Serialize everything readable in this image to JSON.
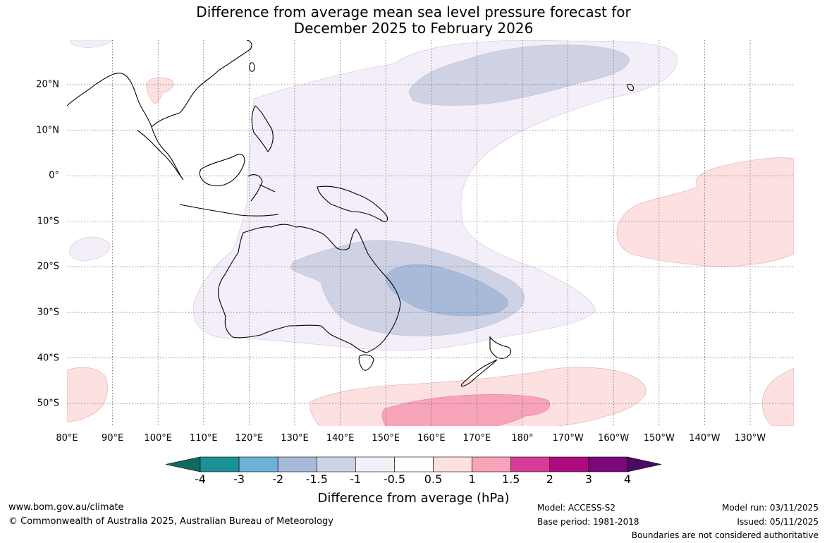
{
  "title_line1": "Difference from average mean sea level pressure forecast for",
  "title_line2": "December 2025 to February 2026",
  "lon_labels": [
    "80°E",
    "90°E",
    "100°E",
    "110°E",
    "120°E",
    "130°E",
    "140°E",
    "150°E",
    "160°E",
    "170°E",
    "180°",
    "170°W",
    "160°W",
    "150°W",
    "140°W",
    "130°W"
  ],
  "lat_labels": [
    "20°N",
    "10°N",
    "0°",
    "10°S",
    "20°S",
    "30°S",
    "40°S",
    "50°S"
  ],
  "colorbar": {
    "ticks": [
      "-4",
      "-3",
      "-2",
      "-1.5",
      "-1",
      "-0.5",
      "0.5",
      "1",
      "1.5",
      "2",
      "3",
      "4"
    ],
    "colors": [
      "#0e6b5f",
      "#1b9197",
      "#6fb0d6",
      "#a8bada",
      "#cfd2e5",
      "#f3eef7",
      "#ffffff",
      "#fde0e0",
      "#f7a3b9",
      "#d83a9a",
      "#b00b7e",
      "#7b0a78",
      "#4b0b5f"
    ],
    "label": "Difference from average (hPa)"
  },
  "footer": {
    "url": "www.bom.gov.au/climate",
    "copyright": "© Commonwealth of Australia 2025, Australian Bureau of Meteorology",
    "model": "Model: ACCESS-S2",
    "base_period": "Base period: 1981-2018",
    "model_run": "Model run: 03/11/2025",
    "issued": "Issued: 05/11/2025",
    "disclaimer": "Boundaries are not considered authoritative"
  }
}
